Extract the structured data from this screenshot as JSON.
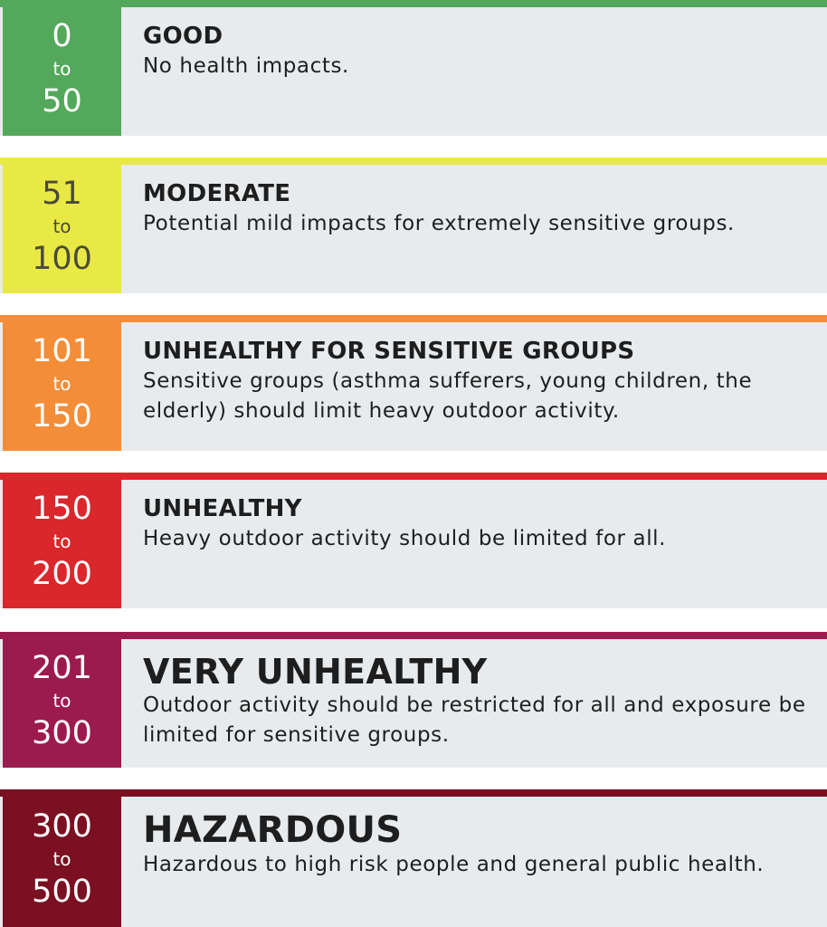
{
  "categories": [
    {
      "from": "0",
      "to_word": "to",
      "to": "50",
      "title": "GOOD",
      "description": "No health impacts.",
      "color": "#54a85b",
      "badge_text_color": "#ffffff"
    },
    {
      "from": "51",
      "to_word": "to",
      "to": "100",
      "title": "MODERATE",
      "description": "Potential mild impacts for extremely sensitive groups.",
      "color": "#e9e945",
      "badge_text_color": "#4a4a3a"
    },
    {
      "from": "101",
      "to_word": "to",
      "to": "150",
      "title": "UNHEALTHY FOR SENSITIVE GROUPS",
      "description": "Sensitive groups (asthma sufferers, young children, the elderly) should limit heavy outdoor activity.",
      "color": "#f48d38",
      "badge_text_color": "#ffffff"
    },
    {
      "from": "150",
      "to_word": "to",
      "to": "200",
      "title": "UNHEALTHY",
      "description": "Heavy outdoor activity should be limited for all.",
      "color": "#d9272c",
      "badge_text_color": "#ffffff"
    },
    {
      "from": "201",
      "to_word": "to",
      "to": "300",
      "title": "VERY UNHEALTHY",
      "description": "Outdoor activity should be restricted for all and exposure be limited for sensitive groups.",
      "color": "#9c1b4f",
      "badge_text_color": "#ffffff"
    },
    {
      "from": "300",
      "to_word": "to",
      "to": "500",
      "title": "HAZARDOUS",
      "description": "Hazardous to high risk people and general public health.",
      "color": "#7a1022",
      "badge_text_color": "#ffffff"
    }
  ]
}
